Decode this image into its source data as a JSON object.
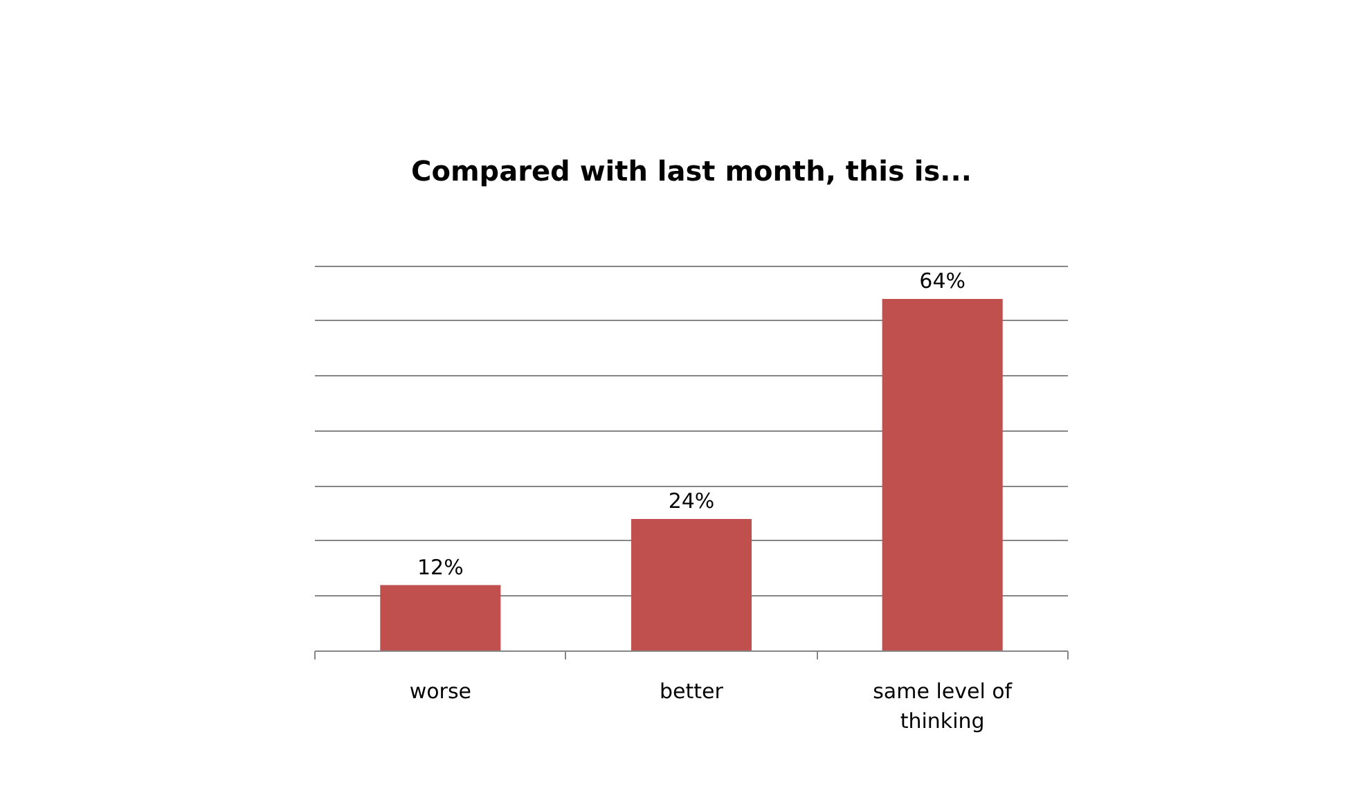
{
  "chart_data": {
    "type": "bar",
    "title": "Compared with last month, this is...",
    "categories": [
      "worse",
      "better",
      "same level of thinking"
    ],
    "series": [
      {
        "color": "#c0504d",
        "values": [
          12,
          24,
          64
        ],
        "value_labels": [
          "12%",
          "24%",
          "64%"
        ]
      }
    ],
    "grid": "y",
    "tick_labels": "x"
  }
}
